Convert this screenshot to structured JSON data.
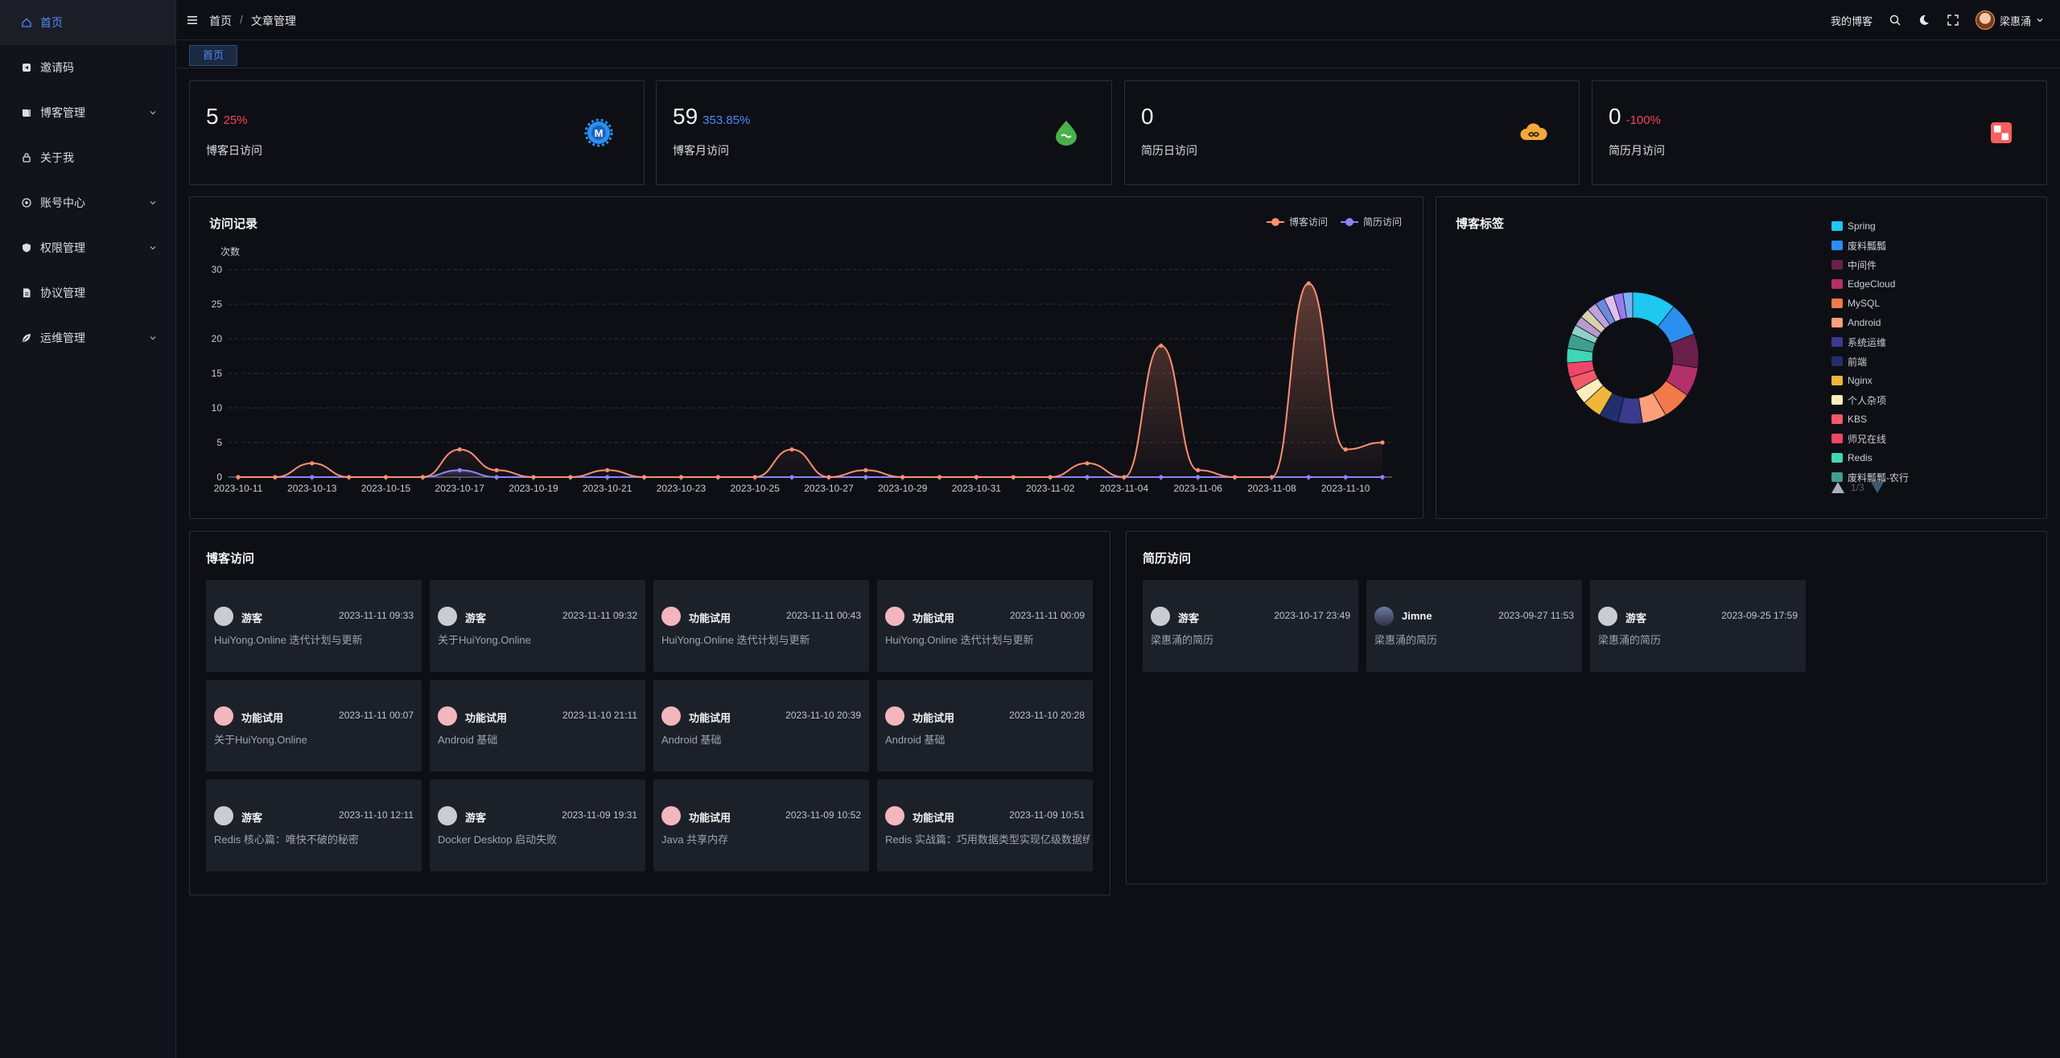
{
  "sidebar": {
    "items": [
      {
        "label": "首页",
        "icon": "home-icon",
        "expandable": false,
        "active": true
      },
      {
        "label": "邀请码",
        "icon": "invite-icon",
        "expandable": false
      },
      {
        "label": "博客管理",
        "icon": "book-icon",
        "expandable": true
      },
      {
        "label": "关于我",
        "icon": "lock-icon",
        "expandable": false
      },
      {
        "label": "账号中心",
        "icon": "account-icon",
        "expandable": true
      },
      {
        "label": "权限管理",
        "icon": "shield-icon",
        "expandable": true
      },
      {
        "label": "协议管理",
        "icon": "document-icon",
        "expandable": false
      },
      {
        "label": "运维管理",
        "icon": "leaf-icon",
        "expandable": true
      }
    ]
  },
  "header": {
    "breadcrumb": [
      "首页",
      "文章管理"
    ],
    "separator": "/",
    "my_blog": "我的博客",
    "username": "梁惠涌"
  },
  "tabs": [
    {
      "label": "首页",
      "active": true
    }
  ],
  "stats": [
    {
      "value": "5",
      "pct": "25%",
      "pct_color": "#f5465a",
      "label": "博客日访问",
      "icon": "gear-badge-icon"
    },
    {
      "value": "59",
      "pct": "353.85%",
      "pct_color": "#4e8bf5",
      "label": "博客月访问",
      "icon": "green-drop-icon"
    },
    {
      "value": "0",
      "pct": "",
      "pct_color": "#f5465a",
      "label": "简历日访问",
      "icon": "cloud-infinity-icon"
    },
    {
      "value": "0",
      "pct": "-100%",
      "pct_color": "#f5465a",
      "label": "简历月访问",
      "icon": "red-squares-icon"
    }
  ],
  "visits_panel": {
    "title": "访问记录"
  },
  "tags_panel": {
    "title": "博客标签",
    "pager": "1/3"
  },
  "chart_data": [
    {
      "type": "line",
      "title": "访问记录",
      "ylabel": "次数",
      "ylim": [
        0,
        30
      ],
      "yticks": [
        0,
        5,
        10,
        15,
        20,
        25,
        30
      ],
      "x": [
        "2023-10-11",
        "2023-10-12",
        "2023-10-13",
        "2023-10-14",
        "2023-10-15",
        "2023-10-16",
        "2023-10-17",
        "2023-10-18",
        "2023-10-19",
        "2023-10-20",
        "2023-10-21",
        "2023-10-22",
        "2023-10-23",
        "2023-10-24",
        "2023-10-25",
        "2023-10-26",
        "2023-10-27",
        "2023-10-28",
        "2023-10-29",
        "2023-10-30",
        "2023-10-31",
        "2023-11-01",
        "2023-11-02",
        "2023-11-03",
        "2023-11-04",
        "2023-11-05",
        "2023-11-06",
        "2023-11-07",
        "2023-11-08",
        "2023-11-09",
        "2023-11-10",
        "2023-11-11"
      ],
      "x_tick_labels": [
        "2023-10-11",
        "2023-10-13",
        "2023-10-15",
        "2023-10-17",
        "2023-10-19",
        "2023-10-21",
        "2023-10-23",
        "2023-10-25",
        "2023-10-27",
        "2023-10-29",
        "2023-10-31",
        "2023-11-02",
        "2023-11-04",
        "2023-11-06",
        "2023-11-08",
        "2023-11-10"
      ],
      "legend_position": "top-right",
      "grid": true,
      "series": [
        {
          "name": "博客访问",
          "color": "#fb8f71",
          "values": [
            0,
            0,
            2,
            0,
            0,
            0,
            4,
            1,
            0,
            0,
            1,
            0,
            0,
            0,
            0,
            4,
            0,
            1,
            0,
            0,
            0,
            0,
            0,
            2,
            0,
            19,
            1,
            0,
            0,
            28,
            4,
            5
          ]
        },
        {
          "name": "简历访问",
          "color": "#8f82f7",
          "values": [
            0,
            0,
            0,
            0,
            0,
            0,
            1,
            0,
            0,
            0,
            0,
            0,
            0,
            0,
            0,
            0,
            0,
            0,
            0,
            0,
            0,
            0,
            0,
            0,
            0,
            0,
            0,
            0,
            0,
            0,
            0,
            0
          ]
        }
      ]
    },
    {
      "type": "pie",
      "title": "博客标签",
      "legend_position": "right",
      "legend": [
        {
          "name": "Spring",
          "color": "#1ec8f0"
        },
        {
          "name": "废料瓢瓢",
          "color": "#2b8ff0"
        },
        {
          "name": "中间件",
          "color": "#6a1f4a"
        },
        {
          "name": "EdgeCloud",
          "color": "#b3306a"
        },
        {
          "name": "MySQL",
          "color": "#f27a4a"
        },
        {
          "name": "Android",
          "color": "#fba07a"
        },
        {
          "name": "系统运维",
          "color": "#3a3a8f"
        },
        {
          "name": "前端",
          "color": "#232f6a"
        },
        {
          "name": "Nginx",
          "color": "#f0b63a"
        },
        {
          "name": "个人杂项",
          "color": "#faeebc"
        },
        {
          "name": "KBS",
          "color": "#f25a6a"
        },
        {
          "name": "师兄在线",
          "color": "#f0456a"
        },
        {
          "name": "Redis",
          "color": "#3ed6b5"
        },
        {
          "name": "废料瓢瓢-农行",
          "color": "#3f9e8e"
        }
      ],
      "slices": [
        {
          "color": "#1ec8f0",
          "value": 9
        },
        {
          "color": "#2b8ff0",
          "value": 7
        },
        {
          "color": "#6a1f4a",
          "value": 7
        },
        {
          "color": "#b3306a",
          "value": 6
        },
        {
          "color": "#f27a4a",
          "value": 6
        },
        {
          "color": "#fba07a",
          "value": 5
        },
        {
          "color": "#3a3a8f",
          "value": 5
        },
        {
          "color": "#232f6a",
          "value": 4
        },
        {
          "color": "#f0b63a",
          "value": 4
        },
        {
          "color": "#faeebc",
          "value": 3
        },
        {
          "color": "#f25a6a",
          "value": 3
        },
        {
          "color": "#f0456a",
          "value": 3
        },
        {
          "color": "#3ed6b5",
          "value": 3
        },
        {
          "color": "#3f9e8e",
          "value": 3
        },
        {
          "color": "#8fd0c8",
          "value": 2
        },
        {
          "color": "#b89ad0",
          "value": 2
        },
        {
          "color": "#d8d0b0",
          "value": 2
        },
        {
          "color": "#c0a0e0",
          "value": 2
        },
        {
          "color": "#6a8ae0",
          "value": 2
        },
        {
          "color": "#e0c0f0",
          "value": 2
        },
        {
          "color": "#9a7af0",
          "value": 2
        },
        {
          "color": "#7ab0f0",
          "value": 2
        }
      ]
    }
  ],
  "blog_visits": {
    "title": "博客访问",
    "items": [
      {
        "name": "游客",
        "avatar": "guest",
        "time": "2023-11-11 09:33",
        "title": "HuiYong.Online 迭代计划与更新"
      },
      {
        "name": "游客",
        "avatar": "guest",
        "time": "2023-11-11 09:32",
        "title": "关于HuiYong.Online"
      },
      {
        "name": "功能试用",
        "avatar": "func",
        "time": "2023-11-11 00:43",
        "title": "HuiYong.Online 迭代计划与更新"
      },
      {
        "name": "功能试用",
        "avatar": "func",
        "time": "2023-11-11 00:09",
        "title": "HuiYong.Online 迭代计划与更新"
      },
      {
        "name": "功能试用",
        "avatar": "func",
        "time": "2023-11-11 00:07",
        "title": "关于HuiYong.Online"
      },
      {
        "name": "功能试用",
        "avatar": "func",
        "time": "2023-11-10 21:11",
        "title": "Android 基础"
      },
      {
        "name": "功能试用",
        "avatar": "func",
        "time": "2023-11-10 20:39",
        "title": "Android 基础"
      },
      {
        "name": "功能试用",
        "avatar": "func",
        "time": "2023-11-10 20:28",
        "title": "Android 基础"
      },
      {
        "name": "游客",
        "avatar": "guest",
        "time": "2023-11-10 12:11",
        "title": "Redis 核心篇：唯快不破的秘密"
      },
      {
        "name": "游客",
        "avatar": "guest",
        "time": "2023-11-09 19:31",
        "title": "Docker Desktop 启动失败"
      },
      {
        "name": "功能试用",
        "avatar": "func",
        "time": "2023-11-09 10:52",
        "title": "Java 共享内存"
      },
      {
        "name": "功能试用",
        "avatar": "func",
        "time": "2023-11-09 10:51",
        "title": "Redis 实战篇：巧用数据类型实现亿级数据统计"
      }
    ]
  },
  "resume_visits": {
    "title": "简历访问",
    "items": [
      {
        "name": "游客",
        "avatar": "guest",
        "time": "2023-10-17 23:49",
        "title": "梁惠涌的简历"
      },
      {
        "name": "Jimne",
        "avatar": "jimne",
        "time": "2023-09-27 11:53",
        "title": "梁惠涌的简历"
      },
      {
        "name": "游客",
        "avatar": "guest",
        "time": "2023-09-25 17:59",
        "title": "梁惠涌的简历"
      }
    ]
  }
}
